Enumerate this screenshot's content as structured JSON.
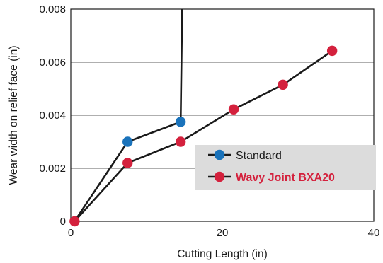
{
  "chart_data": {
    "type": "line",
    "title": "",
    "xlabel": "Cutting Length (in)",
    "ylabel": "Wear width on relief face (in)",
    "xlim": [
      0,
      40
    ],
    "ylim": [
      0,
      0.008
    ],
    "x_ticks": [
      0,
      20,
      40
    ],
    "x_tick_labels": [
      "0",
      "20",
      "40"
    ],
    "y_ticks": [
      0,
      0.002,
      0.004,
      0.006,
      0.008
    ],
    "y_tick_labels": [
      "0",
      "0.002",
      "0.004",
      "0.006",
      "0.008"
    ],
    "grid": "horizontal",
    "legend_position": "lower-right",
    "series": [
      {
        "name": "Standard",
        "color": "#1a73bb",
        "label_color": "#1a1a1a",
        "label_bold": false,
        "points": [
          {
            "x": 0.5,
            "y": 0.0,
            "marker": false
          },
          {
            "x": 7.5,
            "y": 0.003,
            "marker": true
          },
          {
            "x": 14.5,
            "y": 0.00375,
            "marker": true
          },
          {
            "x": 14.7,
            "y": 0.008,
            "marker": false
          }
        ]
      },
      {
        "name": "Wavy Joint BXA20",
        "color": "#d4213d",
        "label_color": "#d4213d",
        "label_bold": true,
        "points": [
          {
            "x": 0.5,
            "y": 0.0,
            "marker": true
          },
          {
            "x": 7.5,
            "y": 0.0022,
            "marker": true
          },
          {
            "x": 14.5,
            "y": 0.003,
            "marker": true
          },
          {
            "x": 21.5,
            "y": 0.00422,
            "marker": true
          },
          {
            "x": 28.0,
            "y": 0.00515,
            "marker": true
          },
          {
            "x": 34.5,
            "y": 0.00643,
            "marker": true
          }
        ]
      }
    ]
  }
}
